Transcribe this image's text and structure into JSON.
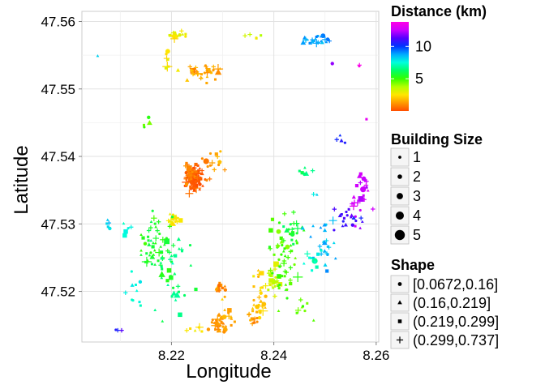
{
  "chart_data": {
    "type": "scatter",
    "title": "",
    "xlabel": "Longitude",
    "ylabel": "Latitude",
    "xlim": [
      8.2025,
      8.2605
    ],
    "ylim": [
      47.5125,
      47.5615
    ],
    "x_ticks": [
      8.22,
      8.24,
      8.26
    ],
    "x_tick_labels": [
      "8.22",
      "8.24",
      "8.26"
    ],
    "y_ticks": [
      47.52,
      47.53,
      47.54,
      47.55,
      47.56
    ],
    "y_tick_labels": [
      "47.52",
      "47.53",
      "47.54",
      "47.55",
      "47.56"
    ],
    "grid": true,
    "color_legend": {
      "title": "Distance (km)",
      "range": [
        0,
        13.8
      ],
      "ticks": [
        5,
        10
      ],
      "tick_labels": [
        "5",
        "10"
      ],
      "colors": [
        "#ff4d00",
        "#ff9900",
        "#ffe600",
        "#b3ff00",
        "#33ff00",
        "#00ff66",
        "#00ffdd",
        "#00aaff",
        "#0033ff",
        "#5500ff",
        "#cc00ff",
        "#ff00e6"
      ]
    },
    "size_legend": {
      "title": "Building Size",
      "levels": [
        "1",
        "2",
        "3",
        "4",
        "5"
      ]
    },
    "shape_legend": {
      "title": "Shape",
      "levels": [
        {
          "label": "[0.0672,0.16]",
          "shape": "circle"
        },
        {
          "label": "(0.16,0.219]",
          "shape": "triangle"
        },
        {
          "label": "(0.219,0.299]",
          "shape": "square"
        },
        {
          "label": "(0.299,0.737]",
          "shape": "plus"
        }
      ]
    },
    "clusters": [
      {
        "x": 8.2205,
        "y": 47.558,
        "sx": 0.0012,
        "sy": 0.0004,
        "n": 16,
        "d": 2.7
      },
      {
        "x": 8.2265,
        "y": 47.5525,
        "sx": 0.0018,
        "sy": 0.0007,
        "n": 30,
        "d": 1.5
      },
      {
        "x": 8.2195,
        "y": 47.5535,
        "sx": 0.0008,
        "sy": 0.0015,
        "n": 8,
        "d": 2.4
      },
      {
        "x": 8.2365,
        "y": 47.5578,
        "sx": 0.0012,
        "sy": 0.0002,
        "n": 5,
        "d": 3.3
      },
      {
        "x": 8.2485,
        "y": 47.5575,
        "sx": 0.002,
        "sy": 0.0005,
        "n": 24,
        "d": 9.0
      },
      {
        "x": 8.257,
        "y": 47.5535,
        "sx": 0.0003,
        "sy": 0.0002,
        "n": 2,
        "d": 13.5
      },
      {
        "x": 8.2515,
        "y": 47.5538,
        "sx": 0.0003,
        "sy": 0.0002,
        "n": 1,
        "d": 11.8
      },
      {
        "x": 8.2055,
        "y": 47.5548,
        "sx": 0.0002,
        "sy": 0.0002,
        "n": 1,
        "d": 8.5
      },
      {
        "x": 8.2245,
        "y": 47.5365,
        "sx": 0.0007,
        "sy": 0.001,
        "n": 110,
        "d": 0.2
      },
      {
        "x": 8.2235,
        "y": 47.5375,
        "sx": 0.0005,
        "sy": 0.0012,
        "n": 20,
        "d": 0.9
      },
      {
        "x": 8.2285,
        "y": 47.5395,
        "sx": 0.0012,
        "sy": 0.001,
        "n": 14,
        "d": 1.4
      },
      {
        "x": 8.2265,
        "y": 47.5365,
        "sx": 0.0005,
        "sy": 0.0002,
        "n": 3,
        "d": 0.7
      },
      {
        "x": 8.2205,
        "y": 47.5305,
        "sx": 0.0006,
        "sy": 0.0004,
        "n": 22,
        "d": 2.6
      },
      {
        "x": 8.217,
        "y": 47.5265,
        "sx": 0.0022,
        "sy": 0.0022,
        "n": 60,
        "d": 5.5
      },
      {
        "x": 8.2115,
        "y": 47.529,
        "sx": 0.0006,
        "sy": 0.0006,
        "n": 5,
        "d": 7.5
      },
      {
        "x": 8.2195,
        "y": 47.5215,
        "sx": 0.0022,
        "sy": 0.003,
        "n": 30,
        "d": 6.5
      },
      {
        "x": 8.213,
        "y": 47.5205,
        "sx": 0.001,
        "sy": 0.002,
        "n": 10,
        "d": 7.5
      },
      {
        "x": 8.2075,
        "y": 47.53,
        "sx": 0.0004,
        "sy": 0.0004,
        "n": 5,
        "d": 8.2
      },
      {
        "x": 8.2145,
        "y": 47.5455,
        "sx": 0.001,
        "sy": 0.0008,
        "n": 4,
        "d": 5.0
      },
      {
        "x": 8.21,
        "y": 47.5143,
        "sx": 0.0005,
        "sy": 0.0002,
        "n": 3,
        "d": 11.0
      },
      {
        "x": 8.2295,
        "y": 47.5153,
        "sx": 0.0012,
        "sy": 0.0008,
        "n": 35,
        "d": 1.2
      },
      {
        "x": 8.2295,
        "y": 47.5205,
        "sx": 0.0006,
        "sy": 0.0004,
        "n": 12,
        "d": 0.9
      },
      {
        "x": 8.2245,
        "y": 47.5145,
        "sx": 0.0015,
        "sy": 0.0005,
        "n": 6,
        "d": 2.5
      },
      {
        "x": 8.2305,
        "y": 47.5175,
        "sx": 0.0005,
        "sy": 0.0015,
        "n": 6,
        "d": 1.6
      },
      {
        "x": 8.237,
        "y": 47.5185,
        "sx": 0.0008,
        "sy": 0.002,
        "n": 28,
        "d": 2.1
      },
      {
        "x": 8.236,
        "y": 47.516,
        "sx": 0.0006,
        "sy": 0.0006,
        "n": 10,
        "d": 1.3
      },
      {
        "x": 8.2395,
        "y": 47.5215,
        "sx": 0.001,
        "sy": 0.001,
        "n": 25,
        "d": 3.4
      },
      {
        "x": 8.2425,
        "y": 47.525,
        "sx": 0.0015,
        "sy": 0.003,
        "n": 55,
        "d": 4.8
      },
      {
        "x": 8.244,
        "y": 47.529,
        "sx": 0.0008,
        "sy": 0.0012,
        "n": 15,
        "d": 5.8
      },
      {
        "x": 8.2455,
        "y": 47.5175,
        "sx": 0.001,
        "sy": 0.001,
        "n": 8,
        "d": 4.5
      },
      {
        "x": 8.25,
        "y": 47.5275,
        "sx": 0.0015,
        "sy": 0.002,
        "n": 25,
        "d": 8.5
      },
      {
        "x": 8.248,
        "y": 47.524,
        "sx": 0.001,
        "sy": 0.0015,
        "n": 10,
        "d": 7.2
      },
      {
        "x": 8.2545,
        "y": 47.531,
        "sx": 0.0015,
        "sy": 0.0008,
        "n": 18,
        "d": 11.0
      },
      {
        "x": 8.257,
        "y": 47.534,
        "sx": 0.001,
        "sy": 0.002,
        "n": 25,
        "d": 12.5
      },
      {
        "x": 8.248,
        "y": 47.5345,
        "sx": 0.0004,
        "sy": 0.0002,
        "n": 2,
        "d": 8.0
      },
      {
        "x": 8.246,
        "y": 47.5375,
        "sx": 0.0006,
        "sy": 0.0005,
        "n": 6,
        "d": 6.5
      },
      {
        "x": 8.253,
        "y": 47.5425,
        "sx": 0.0006,
        "sy": 0.0008,
        "n": 4,
        "d": 10.5
      },
      {
        "x": 8.2585,
        "y": 47.5455,
        "sx": 0.0002,
        "sy": 0.0002,
        "n": 1,
        "d": 13.8
      }
    ]
  }
}
